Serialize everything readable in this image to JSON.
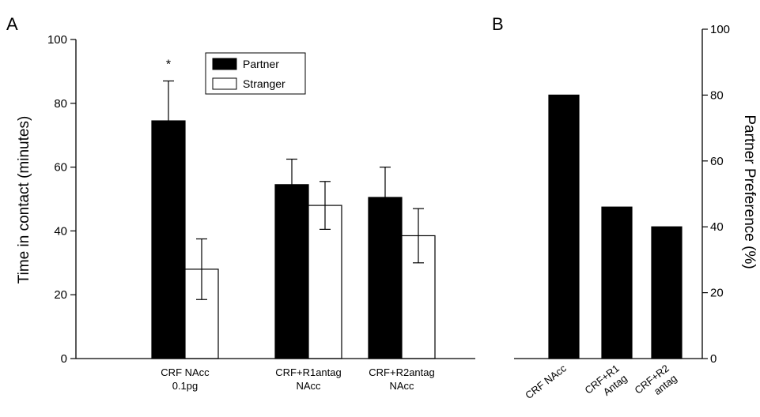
{
  "chart_data": [
    {
      "type": "bar",
      "panel_label": "A",
      "categories": [
        [
          "CRF NAcc",
          "0.1pg"
        ],
        [
          "CRF+R1antag",
          "NAcc"
        ],
        [
          "CRF+R2antag",
          "NAcc"
        ]
      ],
      "series": [
        {
          "name": "Partner",
          "values": [
            74.5,
            54.5,
            50.5
          ],
          "errors": [
            12.5,
            8.0,
            9.5
          ],
          "color": "#000000"
        },
        {
          "name": "Stranger",
          "values": [
            28.0,
            48.0,
            38.5
          ],
          "errors": [
            9.5,
            7.5,
            8.5
          ],
          "color": "#ffffff"
        }
      ],
      "annotations": [
        {
          "category": 0,
          "series": 0,
          "text": "*"
        }
      ],
      "ylabel": "Time in contact (minutes)",
      "xlabel": "",
      "ylim": [
        0,
        100
      ],
      "yticks": [
        0,
        20,
        40,
        60,
        80,
        100
      ],
      "legend_position": "top-center",
      "grid": false
    },
    {
      "type": "bar",
      "panel_label": "B",
      "categories": [
        [
          "CRF NAcc"
        ],
        [
          "CRF+R1",
          "Antag"
        ],
        [
          "CRF+R2",
          "antag"
        ]
      ],
      "values": [
        80,
        46,
        40
      ],
      "color": "#000000",
      "ylabel": "Partner Preference (%)",
      "xlabel": "",
      "ylim": [
        0,
        100
      ],
      "yticks": [
        0,
        20,
        40,
        60,
        80,
        100
      ],
      "yaxis_side": "right",
      "grid": false
    }
  ]
}
